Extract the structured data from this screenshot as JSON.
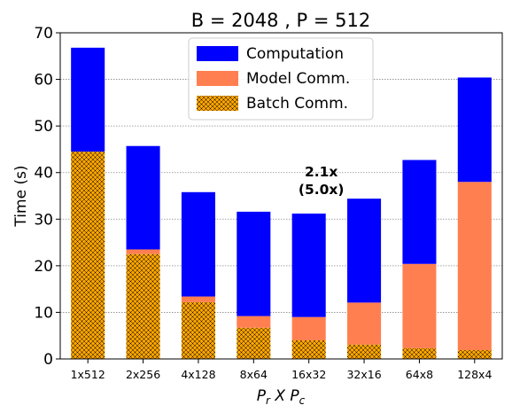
{
  "chart_data": {
    "type": "bar",
    "stacked": true,
    "title": "B = 2048 ,  P = 512",
    "xlabel": "P_r X P_c",
    "ylabel": "Time (s)",
    "ylim": [
      0,
      70
    ],
    "yticks": [
      0,
      10,
      20,
      30,
      40,
      50,
      60,
      70
    ],
    "grid": "horizontal-dotted",
    "legend_position": "top-center",
    "categories": [
      "1x512",
      "2x256",
      "4x128",
      "8x64",
      "16x32",
      "32x16",
      "64x8",
      "128x4"
    ],
    "series": [
      {
        "name": "Batch Comm.",
        "color": "#ffa500",
        "hatch": "crosshatch",
        "values": [
          44.5,
          22.5,
          12.2,
          6.7,
          4.0,
          3.1,
          2.3,
          1.9
        ]
      },
      {
        "name": "Model Comm.",
        "color": "#ff7f50",
        "values": [
          0.0,
          1.0,
          1.2,
          2.5,
          5.0,
          9.0,
          18.1,
          36.1
        ]
      },
      {
        "name": "Computation",
        "color": "#0000ff",
        "values": [
          22.3,
          22.2,
          22.4,
          22.4,
          22.2,
          22.3,
          22.3,
          22.4
        ]
      }
    ],
    "annotation": {
      "lines": [
        "2.1x",
        "(5.0x)"
      ],
      "category": "16x32",
      "y": 39.2
    }
  }
}
